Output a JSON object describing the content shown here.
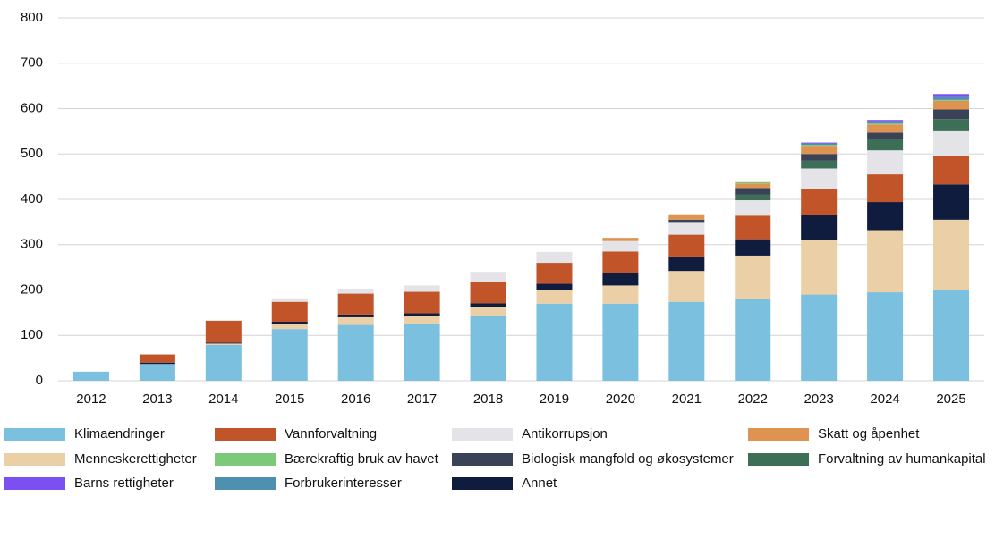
{
  "chart_data": {
    "type": "stacked_bar",
    "categories": [
      "2012",
      "2013",
      "2014",
      "2015",
      "2016",
      "2017",
      "2018",
      "2019",
      "2020",
      "2021",
      "2022",
      "2023",
      "2024",
      "2025"
    ],
    "ylim": [
      0,
      800
    ],
    "yticks": [
      0,
      100,
      200,
      300,
      400,
      500,
      600,
      700,
      800
    ],
    "grid": true,
    "series": [
      {
        "name": "Klimaendringer",
        "color": "#7cc0e0",
        "values": [
          20,
          37,
          79,
          114,
          123,
          126,
          142,
          170,
          170,
          174,
          180,
          190,
          195,
          200
        ]
      },
      {
        "name": "Menneskerettigheter",
        "color": "#ebcfa6",
        "values": [
          0,
          0,
          3,
          12,
          17,
          17,
          20,
          30,
          40,
          68,
          96,
          121,
          137,
          155
        ]
      },
      {
        "name": "Annet",
        "color": "#101c3d",
        "values": [
          0,
          3,
          2,
          4,
          6,
          6,
          9,
          14,
          28,
          32,
          36,
          55,
          62,
          78
        ]
      },
      {
        "name": "Vannforvaltning",
        "color": "#c2542a",
        "values": [
          0,
          18,
          48,
          44,
          46,
          47,
          47,
          46,
          47,
          48,
          52,
          57,
          61,
          62
        ]
      },
      {
        "name": "Antikorrupsjon",
        "color": "#e3e3e8",
        "values": [
          0,
          0,
          2,
          8,
          11,
          14,
          22,
          24,
          23,
          28,
          34,
          45,
          53,
          55
        ]
      },
      {
        "name": "Forvaltning av humankapital",
        "color": "#3d6e56",
        "values": [
          0,
          0,
          0,
          0,
          0,
          0,
          0,
          0,
          0,
          0,
          12,
          17,
          24,
          27
        ]
      },
      {
        "name": "Biologisk mangfold og økosystemer",
        "color": "#3a4258",
        "values": [
          0,
          0,
          0,
          0,
          0,
          0,
          0,
          0,
          0,
          5,
          15,
          15,
          15,
          21
        ]
      },
      {
        "name": "Skatt og åpenhet",
        "color": "#df9350",
        "values": [
          0,
          0,
          0,
          0,
          0,
          0,
          0,
          0,
          7,
          12,
          10,
          18,
          18,
          19
        ]
      },
      {
        "name": "Bærekraftig bruk av havet",
        "color": "#7cc97a",
        "values": [
          0,
          0,
          0,
          0,
          0,
          0,
          0,
          0,
          0,
          0,
          3,
          2,
          2,
          2
        ]
      },
      {
        "name": "Forbrukerinteresser",
        "color": "#4e90b0",
        "values": [
          0,
          0,
          0,
          0,
          0,
          0,
          0,
          0,
          0,
          0,
          0,
          3,
          5,
          8
        ]
      },
      {
        "name": "Barns rettigheter",
        "color": "#7b4ff0",
        "values": [
          0,
          0,
          0,
          0,
          0,
          0,
          0,
          0,
          0,
          0,
          0,
          2,
          3,
          5
        ]
      }
    ]
  }
}
